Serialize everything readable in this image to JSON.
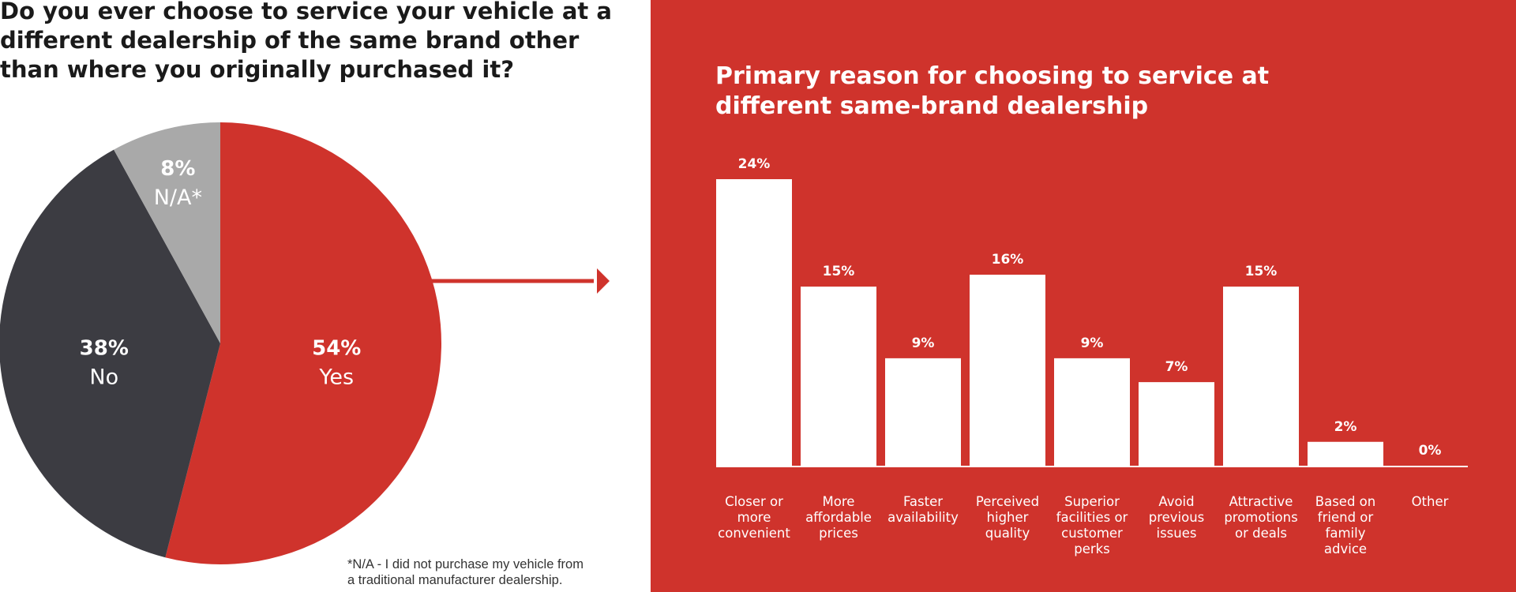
{
  "colors": {
    "red": "#cf332c",
    "dark": "#3c3c42",
    "gray": "#a9a9a9",
    "white": "#ffffff"
  },
  "pie": {
    "title_lines": [
      "Do you ever choose to service your vehicle at a",
      "different dealership of the same brand other",
      "than where you originally purchased it?"
    ],
    "footnote_lines": [
      "*N/A - I did not purchase my vehicle from",
      "a traditional manufacturer dealership."
    ],
    "chart_data": {
      "type": "pie",
      "slices": [
        {
          "label": "Yes",
          "value": 54,
          "value_label": "54%",
          "color": "#cf332c"
        },
        {
          "label": "No",
          "value": 38,
          "value_label": "38%",
          "color": "#3c3c42"
        },
        {
          "label": "N/A*",
          "value": 8,
          "value_label": "8%",
          "color": "#a9a9a9"
        }
      ]
    }
  },
  "bars": {
    "title_lines": [
      "Primary reason for choosing to service at",
      "different same-brand dealership"
    ],
    "chart_data": {
      "type": "bar",
      "categories": [
        [
          "Closer or",
          "more",
          "convenient"
        ],
        [
          "More",
          "affordable",
          "prices"
        ],
        [
          "Faster",
          "availability"
        ],
        [
          "Perceived",
          "higher",
          "quality"
        ],
        [
          "Superior",
          "facilities or",
          "customer",
          "perks"
        ],
        [
          "Avoid",
          "previous",
          "issues"
        ],
        [
          "Attractive",
          "promotions",
          "or deals"
        ],
        [
          "Based on",
          "friend or",
          "family",
          "advice"
        ],
        [
          "Other"
        ]
      ],
      "values": [
        24,
        15,
        9,
        16,
        9,
        7,
        15,
        2,
        0
      ],
      "value_labels": [
        "24%",
        "15%",
        "9%",
        "16%",
        "9%",
        "7%",
        "15%",
        "2%",
        "0%"
      ],
      "ylim": [
        0,
        24
      ]
    }
  }
}
